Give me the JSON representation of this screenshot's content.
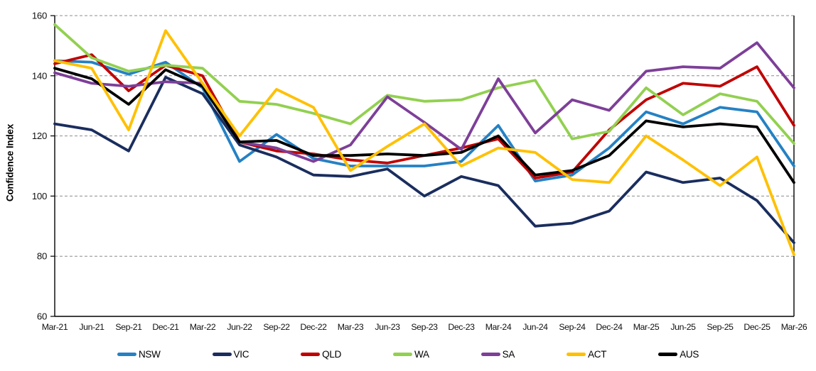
{
  "chart_data": {
    "type": "line",
    "title": "",
    "xlabel": "",
    "ylabel": "Confidence Index",
    "ylim": [
      60,
      160
    ],
    "y_ticks": [
      160,
      140,
      120,
      100,
      80,
      60
    ],
    "grid": "horizontal-dashed",
    "legend_position": "bottom",
    "categories": [
      "Mar-21",
      "Jun-21",
      "Sep-21",
      "Dec-21",
      "Mar-22",
      "Jun-22",
      "Sep-22",
      "Dec-22",
      "Mar-23",
      "Jun-23",
      "Sep-23",
      "Dec-23",
      "Mar-24",
      "Jun-24",
      "Sep-24",
      "Dec-24",
      "Mar-25",
      "Jun-25",
      "Sep-25",
      "Dec-25",
      "Mar-26"
    ],
    "legend_order": [
      "NSW",
      "VIC",
      "QLD",
      "WA",
      "SA",
      "ACT",
      "AUS"
    ],
    "series": [
      {
        "name": "NSW",
        "color": "#2581C4",
        "values": [
          145,
          144.5,
          140.5,
          144.5,
          136,
          111.5,
          120.5,
          112.5,
          110,
          110,
          110,
          111.5,
          123.5,
          105,
          107,
          116,
          128,
          124,
          129.5,
          128,
          110
        ]
      },
      {
        "name": "VIC",
        "color": "#1A2D5E",
        "values": [
          124,
          122,
          115,
          139.5,
          134,
          117,
          113,
          107,
          106.5,
          109,
          100,
          106.5,
          103.5,
          90,
          91,
          95,
          108,
          104.5,
          106,
          98.5,
          84.5
        ]
      },
      {
        "name": "QLD",
        "color": "#C00000",
        "values": [
          144,
          147,
          135,
          143.5,
          140,
          118,
          115,
          114,
          112,
          111,
          113.5,
          116,
          119,
          106,
          108,
          122,
          132,
          137.5,
          136.5,
          143,
          123.5
        ]
      },
      {
        "name": "WA",
        "color": "#92D050",
        "values": [
          157,
          146,
          141.5,
          143.5,
          142.5,
          131.5,
          130.5,
          127.5,
          124,
          133.5,
          131.5,
          132,
          136,
          138.5,
          119,
          121.5,
          136,
          127,
          134,
          131.5,
          117.5
        ]
      },
      {
        "name": "SA",
        "color": "#7D3F98",
        "values": [
          141,
          137.5,
          136.5,
          138,
          137.5,
          118,
          116,
          111.5,
          117,
          133,
          124.5,
          115.5,
          139,
          121,
          132,
          128.5,
          141.5,
          143,
          142.5,
          151,
          136
        ]
      },
      {
        "name": "AUS",
        "color": "#000000",
        "values": [
          142.5,
          139,
          130.5,
          142,
          136.5,
          118,
          118.5,
          113.5,
          113.5,
          114,
          113.5,
          114.5,
          120,
          107,
          108.5,
          113.5,
          125,
          123,
          124,
          123,
          104.5
        ]
      },
      {
        "name": "ACT",
        "color": "#FFC000",
        "values": [
          145,
          142.5,
          122,
          155,
          137.5,
          120,
          135.5,
          129.5,
          108.5,
          116.5,
          124,
          110,
          116,
          114.5,
          105.5,
          104.5,
          120,
          112,
          103.5,
          113,
          80.5
        ]
      }
    ],
    "axis_color": "#000000",
    "gridline_color": "#8c8c8c"
  }
}
